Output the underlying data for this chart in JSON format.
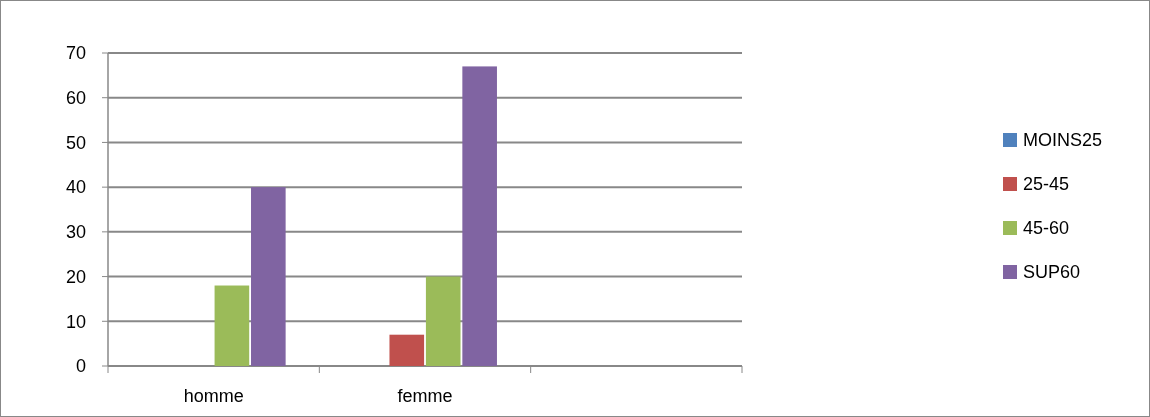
{
  "chart_data": {
    "type": "bar",
    "categories": [
      "homme",
      "femme",
      null
    ],
    "series": [
      {
        "name": "MOINS25",
        "color": "#4f81bd",
        "values": [
          0,
          0,
          null
        ]
      },
      {
        "name": "25-45",
        "color": "#c0504d",
        "values": [
          0,
          7,
          null
        ]
      },
      {
        "name": "45-60",
        "color": "#9bbb59",
        "values": [
          18,
          20,
          null
        ]
      },
      {
        "name": "SUP60",
        "color": "#8064a2",
        "values": [
          40,
          67,
          null
        ]
      }
    ],
    "ylim": [
      0,
      70
    ],
    "yticks": [
      0,
      10,
      20,
      30,
      40,
      50,
      60,
      70
    ],
    "grid": "y",
    "legend": "right"
  }
}
